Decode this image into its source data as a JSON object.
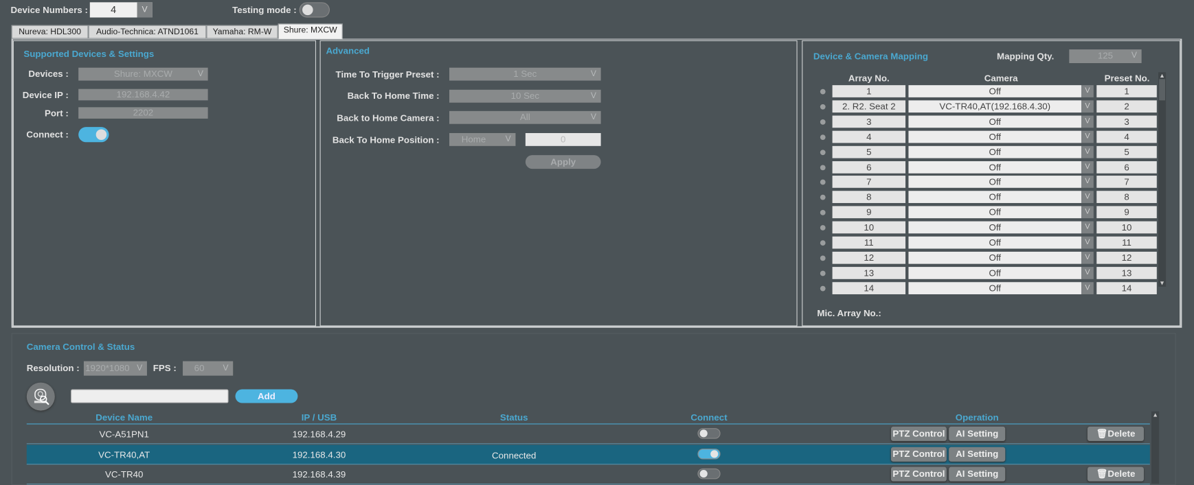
{
  "header": {
    "device_numbers_label": "Device Numbers :",
    "device_numbers_value": "4",
    "testing_mode_label": "Testing mode :",
    "testing_mode_on": false
  },
  "tabs": [
    {
      "label": "Nureva: HDL300"
    },
    {
      "label": "Audio-Technica: ATND1061"
    },
    {
      "label": "Yamaha: RM-W"
    },
    {
      "label": "Shure: MXCW",
      "active": true
    }
  ],
  "supported": {
    "title": "Supported Devices & Settings",
    "devices_label": "Devices :",
    "devices_value": "Shure: MXCW",
    "ip_label": "Device IP :",
    "ip_value": "192.168.4.42",
    "port_label": "Port :",
    "port_value": "2202",
    "connect_label": "Connect :",
    "connect_on": true
  },
  "advanced": {
    "title": "Advanced",
    "trigger_label": "Time To Trigger Preset :",
    "trigger_value": "1 Sec",
    "home_time_label": "Back To Home Time :",
    "home_time_value": "10 Sec",
    "home_camera_label": "Back to Home Camera :",
    "home_camera_value": "All",
    "home_position_label": "Back To Home Position :",
    "home_position_value": "Home",
    "home_position_number": "0",
    "apply_label": "Apply"
  },
  "mapping": {
    "title": "Device & Camera Mapping",
    "qty_label": "Mapping Qty.",
    "qty_value": "125",
    "col_array": "Array No.",
    "col_camera": "Camera",
    "col_preset": "Preset No.",
    "mic_array_label": "Mic. Array No.:",
    "rows": [
      {
        "array": "1",
        "camera": "Off",
        "preset": "1"
      },
      {
        "array": "2. R2. Seat 2",
        "camera": "VC-TR40,AT(192.168.4.30)",
        "preset": "2"
      },
      {
        "array": "3",
        "camera": "Off",
        "preset": "3"
      },
      {
        "array": "4",
        "camera": "Off",
        "preset": "4"
      },
      {
        "array": "5",
        "camera": "Off",
        "preset": "5"
      },
      {
        "array": "6",
        "camera": "Off",
        "preset": "6"
      },
      {
        "array": "7",
        "camera": "Off",
        "preset": "7"
      },
      {
        "array": "8",
        "camera": "Off",
        "preset": "8"
      },
      {
        "array": "9",
        "camera": "Off",
        "preset": "9"
      },
      {
        "array": "10",
        "camera": "Off",
        "preset": "10"
      },
      {
        "array": "11",
        "camera": "Off",
        "preset": "11"
      },
      {
        "array": "12",
        "camera": "Off",
        "preset": "12"
      },
      {
        "array": "13",
        "camera": "Off",
        "preset": "13"
      },
      {
        "array": "14",
        "camera": "Off",
        "preset": "14"
      }
    ]
  },
  "camera": {
    "title": "Camera Control & Status",
    "resolution_label": "Resolution :",
    "resolution_value": "1920*1080",
    "fps_label": "FPS :",
    "fps_value": "60",
    "search_value": "",
    "add_label": "Add",
    "columns": {
      "name": "Device Name",
      "ip": "IP / USB",
      "status": "Status",
      "connect": "Connect",
      "operation": "Operation"
    },
    "ptz_label": "PTZ Control",
    "ai_label": "AI Setting",
    "delete_label": "Delete",
    "rows": [
      {
        "name": "VC-A51PN1",
        "ip": "192.168.4.29",
        "status": "",
        "connected": false,
        "selected": false,
        "deletable": true
      },
      {
        "name": "VC-TR40,AT",
        "ip": "192.168.4.30",
        "status": "Connected",
        "connected": true,
        "selected": true,
        "deletable": false
      },
      {
        "name": "VC-TR40",
        "ip": "192.168.4.39",
        "status": "",
        "connected": false,
        "selected": false,
        "deletable": true
      }
    ]
  },
  "colors": {
    "accent": "#4aa8d0",
    "selected_row": "#1a6580",
    "background": "#4b5357"
  }
}
